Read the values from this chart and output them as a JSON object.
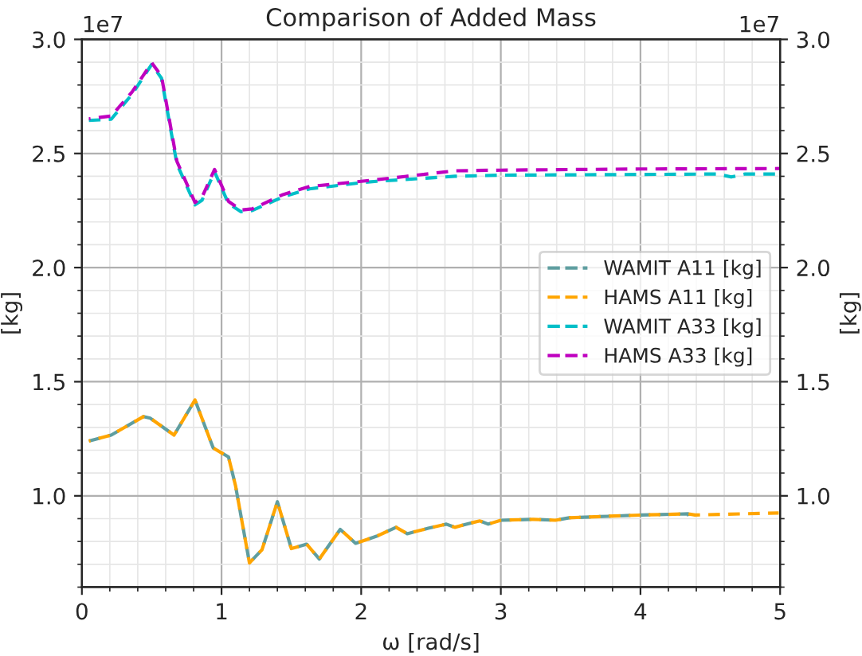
{
  "chart_data": {
    "type": "line",
    "title": "Comparison of Added Mass",
    "xlabel": "ω [rad/s]",
    "ylabel": "[kg]",
    "y2label": "[kg]",
    "annotations": [
      "1e7",
      "1e7"
    ],
    "xlim": [
      0,
      5
    ],
    "xticks": [
      0,
      1,
      2,
      3,
      4,
      5
    ],
    "ylim": [
      0.6,
      3.0
    ],
    "yticks": [
      {
        "value": 1.0,
        "label": "1.0"
      },
      {
        "value": 1.5,
        "label": "1.5"
      },
      {
        "value": 2.0,
        "label": "2.0"
      },
      {
        "value": 2.5,
        "label": "2.5"
      },
      {
        "value": 3.0,
        "label": "3.0"
      }
    ],
    "y2lim": [
      0.6,
      3.0
    ],
    "y2ticks": [
      {
        "value": 1.0,
        "label": "1.0"
      },
      {
        "value": 1.5,
        "label": "1.5"
      },
      {
        "value": 2.0,
        "label": "2.0"
      },
      {
        "value": 2.5,
        "label": "2.5"
      },
      {
        "value": 3.0,
        "label": "3.0"
      }
    ],
    "grid": true,
    "legend": "right",
    "line_style": "dashed",
    "marker": "none",
    "series": [
      {
        "name": "WAMIT A11 [kg]",
        "color": "#5f9ea0",
        "x": [
          0.05,
          0.21,
          0.44,
          0.49,
          0.66,
          0.81,
          0.94,
          1.05,
          1.1,
          1.2,
          1.29,
          1.4,
          1.5,
          1.61,
          1.7,
          1.85,
          1.96,
          2.11,
          2.25,
          2.33,
          2.48,
          2.61,
          2.67,
          2.78,
          2.85,
          2.91,
          3.0,
          3.23,
          3.39,
          3.49,
          4.01,
          4.34,
          4.36
        ],
        "values": [
          1.24,
          1.266,
          1.347,
          1.34,
          1.266,
          1.42,
          1.21,
          1.17,
          1.045,
          0.706,
          0.764,
          0.974,
          0.769,
          0.788,
          0.723,
          0.853,
          0.792,
          0.823,
          0.862,
          0.834,
          0.858,
          0.876,
          0.862,
          0.88,
          0.89,
          0.876,
          0.893,
          0.897,
          0.893,
          0.904,
          0.916,
          0.921,
          0.886
        ]
      },
      {
        "name": "HAMS A11 [kg]",
        "color": "#ffa500",
        "x": [
          0.05,
          0.21,
          0.44,
          0.49,
          0.66,
          0.81,
          0.94,
          1.05,
          1.1,
          1.2,
          1.29,
          1.4,
          1.5,
          1.61,
          1.7,
          1.85,
          1.96,
          2.11,
          2.25,
          2.33,
          2.48,
          2.61,
          2.67,
          2.78,
          2.85,
          2.91,
          3.0,
          3.23,
          3.39,
          3.49,
          4.01,
          4.34,
          4.39,
          4.99
        ],
        "values": [
          1.24,
          1.266,
          1.347,
          1.34,
          1.266,
          1.42,
          1.21,
          1.17,
          1.045,
          0.706,
          0.764,
          0.974,
          0.769,
          0.788,
          0.723,
          0.853,
          0.792,
          0.823,
          0.862,
          0.834,
          0.858,
          0.876,
          0.862,
          0.88,
          0.89,
          0.876,
          0.893,
          0.897,
          0.893,
          0.904,
          0.916,
          0.921,
          0.916,
          0.925
        ]
      },
      {
        "name": "WAMIT A33 [kg]",
        "color": "#00bfc8",
        "x": [
          0.05,
          0.21,
          0.36,
          0.5,
          0.57,
          0.68,
          0.81,
          0.86,
          0.95,
          1.05,
          1.14,
          1.22,
          1.44,
          1.63,
          2.0,
          2.11,
          2.67,
          3.0,
          4.0,
          4.55,
          4.65,
          4.75,
          5.0
        ],
        "values": [
          2.645,
          2.65,
          2.76,
          2.89,
          2.83,
          2.455,
          2.275,
          2.295,
          2.42,
          2.28,
          2.245,
          2.25,
          2.31,
          2.345,
          2.372,
          2.378,
          2.4,
          2.405,
          2.408,
          2.41,
          2.397,
          2.41,
          2.41
        ]
      },
      {
        "name": "HAMS A33 [kg]",
        "color": "#bf00bf",
        "x": [
          0.05,
          0.21,
          0.36,
          0.5,
          0.57,
          0.68,
          0.81,
          0.86,
          0.95,
          1.05,
          1.14,
          1.22,
          1.44,
          1.63,
          2.0,
          2.11,
          2.67,
          3.0,
          4.0,
          5.0
        ],
        "values": [
          2.652,
          2.664,
          2.77,
          2.897,
          2.839,
          2.466,
          2.285,
          2.308,
          2.43,
          2.29,
          2.252,
          2.257,
          2.32,
          2.355,
          2.378,
          2.385,
          2.424,
          2.427,
          2.432,
          2.434
        ]
      }
    ]
  }
}
